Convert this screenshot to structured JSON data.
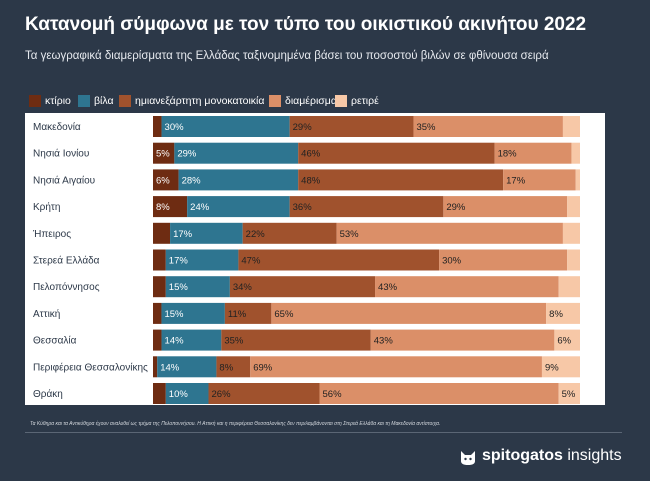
{
  "title": "Κατανομή σύμφωνα με τον τύπο του οικιστικού ακινήτου 2022",
  "subtitle": "Τα γεωγραφικά διαμερίσματα της Ελλάδας ταξινομημένα βάσει του ποσοστού βιλών σε φθίνουσα σειρά",
  "footnote": "Τα Κύθηρα και τα Αντικύθηρα έχουν αναλυθεί ως τμήμα της Πελοποννήσου. Η Αττική και η περιφέρεια Θεσσαλονίκης δεν περιλαμβάνονται στη Στερεά Ελλάδα και τη Μακεδονία αντίστοιχα.",
  "brand": {
    "strong": "spitogatos",
    "light": "insights",
    "icon": "cat-icon"
  },
  "chart_data": {
    "type": "bar",
    "orientation": "horizontal",
    "stacked": true,
    "normalized_percent": true,
    "legend_position": "top-left",
    "categories": [
      "Μακεδονία",
      "Νησιά Ιονίου",
      "Νησιά Αιγαίου",
      "Κρήτη",
      "Ήπειρος",
      "Στερεά Ελλάδα",
      "Πελοπόννησος",
      "Αττική",
      "Θεσσαλία",
      "Περιφέρεια Θεσσαλονίκης",
      "Θράκη"
    ],
    "series": [
      {
        "name": "κτίριο",
        "color": "#6e2c12",
        "values": [
          2,
          5,
          6,
          8,
          4,
          3,
          3,
          2,
          2,
          1,
          3
        ],
        "labels": [
          "",
          "5%",
          "6%",
          "8%",
          "",
          "",
          "",
          "",
          "",
          "",
          ""
        ]
      },
      {
        "name": "βίλα",
        "color": "#2e7590",
        "values": [
          30,
          29,
          28,
          24,
          17,
          17,
          15,
          15,
          14,
          14,
          10
        ],
        "labels": [
          "30%",
          "29%",
          "28%",
          "24%",
          "17%",
          "17%",
          "15%",
          "15%",
          "14%",
          "14%",
          "10%"
        ]
      },
      {
        "name": "ημιανεξάρτητη μονοκατοικία",
        "color": "#a0522d",
        "values": [
          29,
          46,
          48,
          36,
          22,
          47,
          34,
          11,
          35,
          8,
          26
        ],
        "labels": [
          "29%",
          "46%",
          "48%",
          "36%",
          "22%",
          "47%",
          "34%",
          "11%",
          "35%",
          "8%",
          "26%"
        ]
      },
      {
        "name": "διαμέρισμα",
        "color": "#db8f68",
        "values": [
          35,
          18,
          17,
          29,
          53,
          30,
          43,
          65,
          43,
          69,
          56
        ],
        "labels": [
          "35%",
          "18%",
          "17%",
          "29%",
          "53%",
          "30%",
          "43%",
          "65%",
          "43%",
          "69%",
          "56%"
        ]
      },
      {
        "name": "ρετιρέ",
        "color": "#f7c8a7",
        "values": [
          4,
          2,
          1,
          3,
          4,
          3,
          5,
          8,
          6,
          9,
          5
        ],
        "labels": [
          "",
          "",
          "",
          "",
          "",
          "",
          "",
          "8%",
          "6%",
          "9%",
          "5%"
        ]
      }
    ]
  }
}
